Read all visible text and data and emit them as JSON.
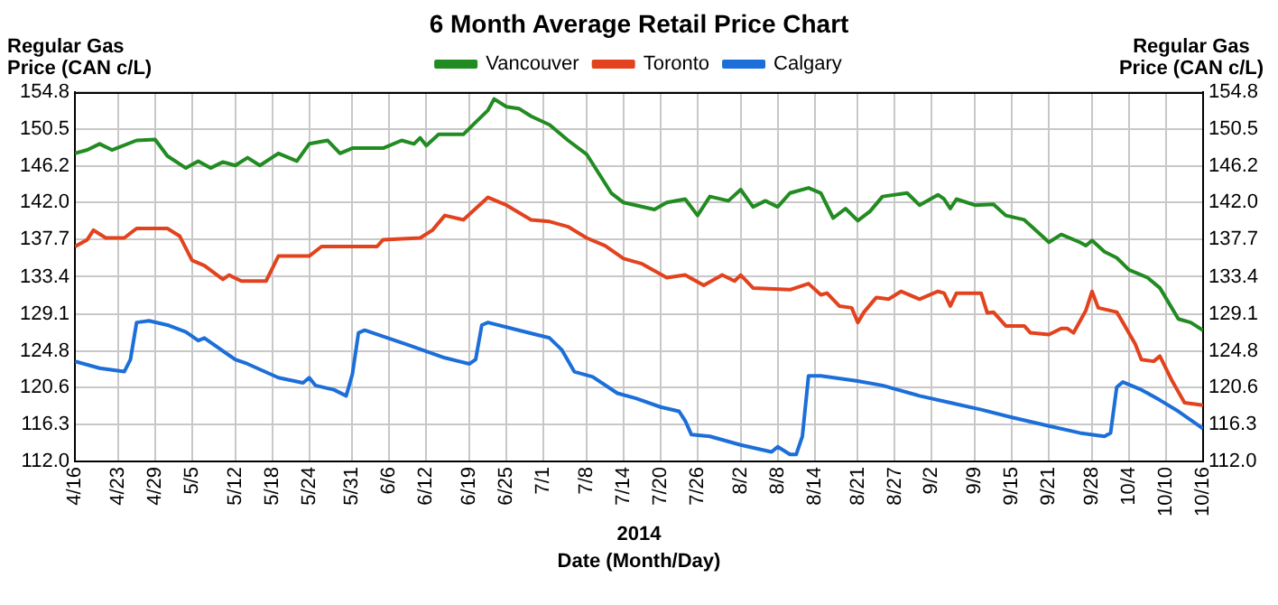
{
  "chart_data": {
    "type": "line",
    "title": "6 Month Average Retail Price Chart",
    "ylabel": "Regular Gas Price (CAN c/L)",
    "y2label": "Regular Gas Price (CAN c/L)",
    "xlabel": "Date (Month/Day)",
    "annotations": [
      "2014"
    ],
    "xlim": [
      "2014-04-16",
      "2014-10-16"
    ],
    "xticks": [
      {
        "value": "2014-04-16",
        "label": "4/16"
      },
      {
        "value": "2014-04-23",
        "label": "4/23"
      },
      {
        "value": "2014-04-29",
        "label": "4/29"
      },
      {
        "value": "2014-05-05",
        "label": "5/5"
      },
      {
        "value": "2014-05-12",
        "label": "5/12"
      },
      {
        "value": "2014-05-18",
        "label": "5/18"
      },
      {
        "value": "2014-05-24",
        "label": "5/24"
      },
      {
        "value": "2014-05-31",
        "label": "5/31"
      },
      {
        "value": "2014-06-06",
        "label": "6/6"
      },
      {
        "value": "2014-06-12",
        "label": "6/12"
      },
      {
        "value": "2014-06-19",
        "label": "6/19"
      },
      {
        "value": "2014-06-25",
        "label": "6/25"
      },
      {
        "value": "2014-07-01",
        "label": "7/1"
      },
      {
        "value": "2014-07-08",
        "label": "7/8"
      },
      {
        "value": "2014-07-14",
        "label": "7/14"
      },
      {
        "value": "2014-07-20",
        "label": "7/20"
      },
      {
        "value": "2014-07-26",
        "label": "7/26"
      },
      {
        "value": "2014-08-02",
        "label": "8/2"
      },
      {
        "value": "2014-08-08",
        "label": "8/8"
      },
      {
        "value": "2014-08-14",
        "label": "8/14"
      },
      {
        "value": "2014-08-21",
        "label": "8/21"
      },
      {
        "value": "2014-08-27",
        "label": "8/27"
      },
      {
        "value": "2014-09-02",
        "label": "9/2"
      },
      {
        "value": "2014-09-09",
        "label": "9/9"
      },
      {
        "value": "2014-09-15",
        "label": "9/15"
      },
      {
        "value": "2014-09-21",
        "label": "9/21"
      },
      {
        "value": "2014-09-28",
        "label": "9/28"
      },
      {
        "value": "2014-10-04",
        "label": "10/4"
      },
      {
        "value": "2014-10-10",
        "label": "10/10"
      },
      {
        "value": "2014-10-16",
        "label": "10/16"
      }
    ],
    "ylim": [
      112,
      154.8
    ],
    "yticks": [
      {
        "value": 112,
        "label": "112.0"
      },
      116.3,
      120.6,
      124.8,
      129.1,
      133.4,
      137.7,
      {
        "value": 142,
        "label": "142.0"
      },
      146.2,
      150.5,
      154.8
    ],
    "y2lim": [
      112,
      154.8
    ],
    "y2ticks": [
      {
        "value": 112,
        "label": "112.0"
      },
      116.3,
      120.6,
      124.8,
      129.1,
      133.4,
      137.7,
      {
        "value": 142,
        "label": "142.0"
      },
      146.2,
      150.5,
      154.8
    ],
    "grid": true,
    "legend": "top",
    "series": [
      {
        "name": "Vancouver",
        "color": "#228b22",
        "x": [
          "2014-04-16",
          "2014-04-18",
          "2014-04-20",
          "2014-04-22",
          "2014-04-26",
          "2014-04-29",
          "2014-05-01",
          "2014-05-04",
          "2014-05-06",
          "2014-05-08",
          "2014-05-10",
          "2014-05-12",
          "2014-05-14",
          "2014-05-16",
          "2014-05-19",
          "2014-05-22",
          "2014-05-24",
          "2014-05-27",
          "2014-05-29",
          "2014-05-31",
          "2014-06-05",
          "2014-06-08",
          "2014-06-10",
          "2014-06-11",
          "2014-06-12",
          "2014-06-14",
          "2014-06-18",
          "2014-06-20",
          "2014-06-22",
          "2014-06-23",
          "2014-06-25",
          "2014-06-27",
          "2014-06-29",
          "2014-07-02",
          "2014-07-05",
          "2014-07-08",
          "2014-07-12",
          "2014-07-14",
          "2014-07-19",
          "2014-07-21",
          "2014-07-24",
          "2014-07-26",
          "2014-07-28",
          "2014-07-31",
          "2014-08-02",
          "2014-08-04",
          "2014-08-06",
          "2014-08-08",
          "2014-08-10",
          "2014-08-13",
          "2014-08-15",
          "2014-08-17",
          "2014-08-19",
          "2014-08-21",
          "2014-08-23",
          "2014-08-25",
          "2014-08-29",
          "2014-08-31",
          "2014-09-03",
          "2014-09-04",
          "2014-09-05",
          "2014-09-06",
          "2014-09-09",
          "2014-09-12",
          "2014-09-14",
          "2014-09-17",
          "2014-09-21",
          "2014-09-23",
          "2014-09-26",
          "2014-09-27",
          "2014-09-28",
          "2014-09-30",
          "2014-10-02",
          "2014-10-04",
          "2014-10-07",
          "2014-10-09",
          "2014-10-12",
          "2014-10-14",
          "2014-10-16"
        ],
        "values": [
          147.7,
          148.1,
          148.8,
          148.1,
          149.2,
          149.3,
          147.4,
          146.0,
          146.8,
          146.0,
          146.7,
          146.3,
          147.2,
          146.3,
          147.7,
          146.8,
          148.8,
          149.2,
          147.7,
          148.3,
          148.3,
          149.2,
          148.8,
          149.5,
          148.6,
          149.9,
          149.9,
          151.3,
          152.7,
          154.0,
          153.1,
          152.9,
          152.0,
          151.0,
          149.2,
          147.6,
          143.1,
          142.0,
          141.2,
          142.0,
          142.4,
          140.5,
          142.7,
          142.2,
          143.5,
          141.5,
          142.2,
          141.5,
          143.1,
          143.7,
          143.1,
          140.2,
          141.3,
          139.9,
          141.0,
          142.7,
          143.1,
          141.7,
          142.9,
          142.4,
          141.3,
          142.4,
          141.7,
          141.8,
          140.5,
          140.0,
          137.4,
          138.3,
          137.4,
          137.0,
          137.6,
          136.3,
          135.6,
          134.2,
          133.3,
          132.1,
          128.5,
          128.1,
          127.2
        ]
      },
      {
        "name": "Toronto",
        "color": "#e2431e",
        "x": [
          "2014-04-16",
          "2014-04-18",
          "2014-04-19",
          "2014-04-21",
          "2014-04-24",
          "2014-04-26",
          "2014-05-01",
          "2014-05-03",
          "2014-05-05",
          "2014-05-07",
          "2014-05-10",
          "2014-05-11",
          "2014-05-13",
          "2014-05-17",
          "2014-05-19",
          "2014-05-24",
          "2014-05-26",
          "2014-06-04",
          "2014-06-05",
          "2014-06-11",
          "2014-06-13",
          "2014-06-15",
          "2014-06-18",
          "2014-06-20",
          "2014-06-22",
          "2014-06-25",
          "2014-06-29",
          "2014-07-02",
          "2014-07-05",
          "2014-07-08",
          "2014-07-11",
          "2014-07-14",
          "2014-07-17",
          "2014-07-21",
          "2014-07-24",
          "2014-07-27",
          "2014-07-30",
          "2014-08-01",
          "2014-08-02",
          "2014-08-04",
          "2014-08-10",
          "2014-08-13",
          "2014-08-15",
          "2014-08-16",
          "2014-08-18",
          "2014-08-20",
          "2014-08-21",
          "2014-08-22",
          "2014-08-24",
          "2014-08-26",
          "2014-08-28",
          "2014-08-31",
          "2014-09-03",
          "2014-09-04",
          "2014-09-05",
          "2014-09-06",
          "2014-09-10",
          "2014-09-11",
          "2014-09-12",
          "2014-09-14",
          "2014-09-17",
          "2014-09-18",
          "2014-09-21",
          "2014-09-23",
          "2014-09-24",
          "2014-09-25",
          "2014-09-27",
          "2014-09-28",
          "2014-09-29",
          "2014-10-02",
          "2014-10-03",
          "2014-10-05",
          "2014-10-06",
          "2014-10-08",
          "2014-10-09",
          "2014-10-11",
          "2014-10-13",
          "2014-10-16"
        ],
        "values": [
          136.9,
          137.7,
          138.8,
          137.9,
          137.9,
          139.0,
          139.0,
          138.1,
          135.3,
          134.7,
          133.1,
          133.6,
          132.9,
          132.9,
          135.8,
          135.8,
          136.9,
          136.9,
          137.7,
          137.9,
          138.8,
          140.5,
          140.0,
          141.3,
          142.6,
          141.7,
          140.0,
          139.8,
          139.2,
          137.9,
          137.0,
          135.5,
          134.9,
          133.3,
          133.6,
          132.4,
          133.6,
          132.9,
          133.6,
          132.1,
          131.9,
          132.6,
          131.3,
          131.5,
          130.0,
          129.8,
          128.1,
          129.3,
          131.0,
          130.8,
          131.7,
          130.8,
          131.7,
          131.5,
          130.0,
          131.5,
          131.5,
          129.2,
          129.3,
          127.7,
          127.7,
          126.9,
          126.7,
          127.4,
          127.4,
          126.9,
          129.5,
          131.7,
          129.8,
          129.3,
          128.1,
          125.6,
          123.8,
          123.6,
          124.2,
          121.3,
          118.8,
          118.5
        ]
      },
      {
        "name": "Calgary",
        "color": "#1c6fd9",
        "x": [
          "2014-04-16",
          "2014-04-20",
          "2014-04-24",
          "2014-04-25",
          "2014-04-26",
          "2014-04-28",
          "2014-05-01",
          "2014-05-04",
          "2014-05-06",
          "2014-05-07",
          "2014-05-12",
          "2014-05-14",
          "2014-05-19",
          "2014-05-23",
          "2014-05-24",
          "2014-05-25",
          "2014-05-28",
          "2014-05-30",
          "2014-05-31",
          "2014-06-01",
          "2014-06-02",
          "2014-06-09",
          "2014-06-15",
          "2014-06-19",
          "2014-06-20",
          "2014-06-21",
          "2014-06-22",
          "2014-06-27",
          "2014-07-02",
          "2014-07-04",
          "2014-07-06",
          "2014-07-09",
          "2014-07-13",
          "2014-07-16",
          "2014-07-20",
          "2014-07-23",
          "2014-07-24",
          "2014-07-25",
          "2014-07-28",
          "2014-08-02",
          "2014-08-07",
          "2014-08-08",
          "2014-08-10",
          "2014-08-11",
          "2014-08-12",
          "2014-08-13",
          "2014-08-15",
          "2014-08-21",
          "2014-08-25",
          "2014-08-31",
          "2014-09-05",
          "2014-09-10",
          "2014-09-15",
          "2014-09-21",
          "2014-09-26",
          "2014-09-30",
          "2014-10-01",
          "2014-10-02",
          "2014-10-03",
          "2014-10-06",
          "2014-10-09",
          "2014-10-12",
          "2014-10-16"
        ],
        "values": [
          123.6,
          122.8,
          122.4,
          123.8,
          128.1,
          128.3,
          127.8,
          127.0,
          126.0,
          126.3,
          123.8,
          123.3,
          121.7,
          121.1,
          121.7,
          120.8,
          120.3,
          119.6,
          122.1,
          126.9,
          127.2,
          125.5,
          124.0,
          123.3,
          123.8,
          127.8,
          128.1,
          127.2,
          126.3,
          124.9,
          122.4,
          121.8,
          119.9,
          119.3,
          118.3,
          117.8,
          116.7,
          115.1,
          114.9,
          113.9,
          113.1,
          113.7,
          112.8,
          112.8,
          114.9,
          121.9,
          121.9,
          121.3,
          120.8,
          119.6,
          118.8,
          118.0,
          117.1,
          116.1,
          115.3,
          114.9,
          115.3,
          120.6,
          121.2,
          120.3,
          119.1,
          117.8,
          115.8
        ]
      }
    ]
  }
}
